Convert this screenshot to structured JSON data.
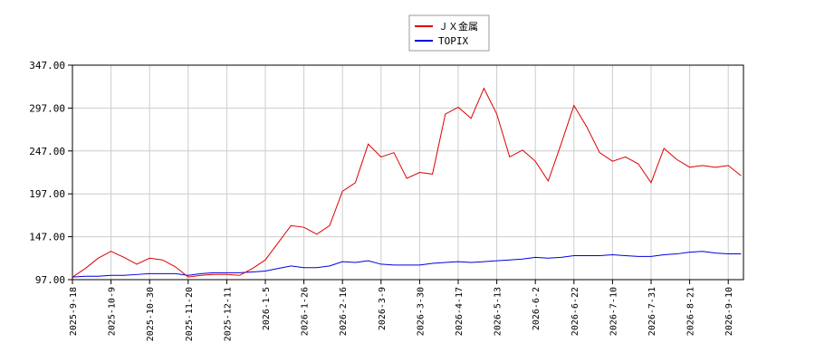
{
  "chart_data": {
    "type": "line",
    "x": [
      "2025-9-18",
      null,
      null,
      "2025-10-9",
      null,
      null,
      "2025-10-30",
      null,
      null,
      "2025-11-20",
      null,
      null,
      "2025-12-11",
      null,
      null,
      "2026-1-5",
      null,
      null,
      "2026-1-26",
      null,
      null,
      "2026-2-16",
      null,
      null,
      "2026-3-9",
      null,
      null,
      "2026-3-30",
      null,
      null,
      "2026-4-17",
      null,
      null,
      "2026-5-13",
      null,
      null,
      "2026-6-2",
      null,
      null,
      "2026-6-22",
      null,
      null,
      "2026-7-10",
      null,
      null,
      "2026-7-31",
      null,
      null,
      "2026-8-21",
      null,
      null,
      "2026-9-10",
      null
    ],
    "series": [
      {
        "name": "ＪＸ金属",
        "color": "#dd0000",
        "values": [
          100,
          110,
          122,
          130,
          123,
          115,
          122,
          120,
          112,
          100,
          102,
          103,
          103,
          102,
          110,
          120,
          140,
          160,
          158,
          150,
          160,
          200,
          210,
          255,
          240,
          245,
          215,
          222,
          220,
          290,
          298,
          285,
          320,
          290,
          240,
          248,
          235,
          212,
          255,
          300,
          275,
          245,
          235,
          240,
          232,
          210,
          250,
          237,
          228,
          230,
          228,
          230,
          218
        ]
      },
      {
        "name": "TOPIX",
        "color": "#0000dd",
        "values": [
          100,
          101,
          101,
          102,
          102,
          103,
          104,
          104,
          104,
          102,
          104,
          105,
          105,
          105,
          106,
          107,
          110,
          113,
          111,
          111,
          113,
          118,
          117,
          119,
          115,
          114,
          114,
          114,
          116,
          117,
          118,
          117,
          118,
          119,
          120,
          121,
          123,
          122,
          123,
          125,
          125,
          125,
          126,
          125,
          124,
          124,
          126,
          127,
          129,
          130,
          128,
          127,
          127
        ]
      }
    ],
    "ylim": [
      97,
      347
    ],
    "yticks": [
      {
        "value": 97,
        "label": "97.00"
      },
      {
        "value": 147,
        "label": "147.00"
      },
      {
        "value": 197,
        "label": "197.00"
      },
      {
        "value": 247,
        "label": "247.00"
      },
      {
        "value": 297,
        "label": "297.00"
      },
      {
        "value": 347,
        "label": "347.00"
      }
    ],
    "grid": true
  }
}
